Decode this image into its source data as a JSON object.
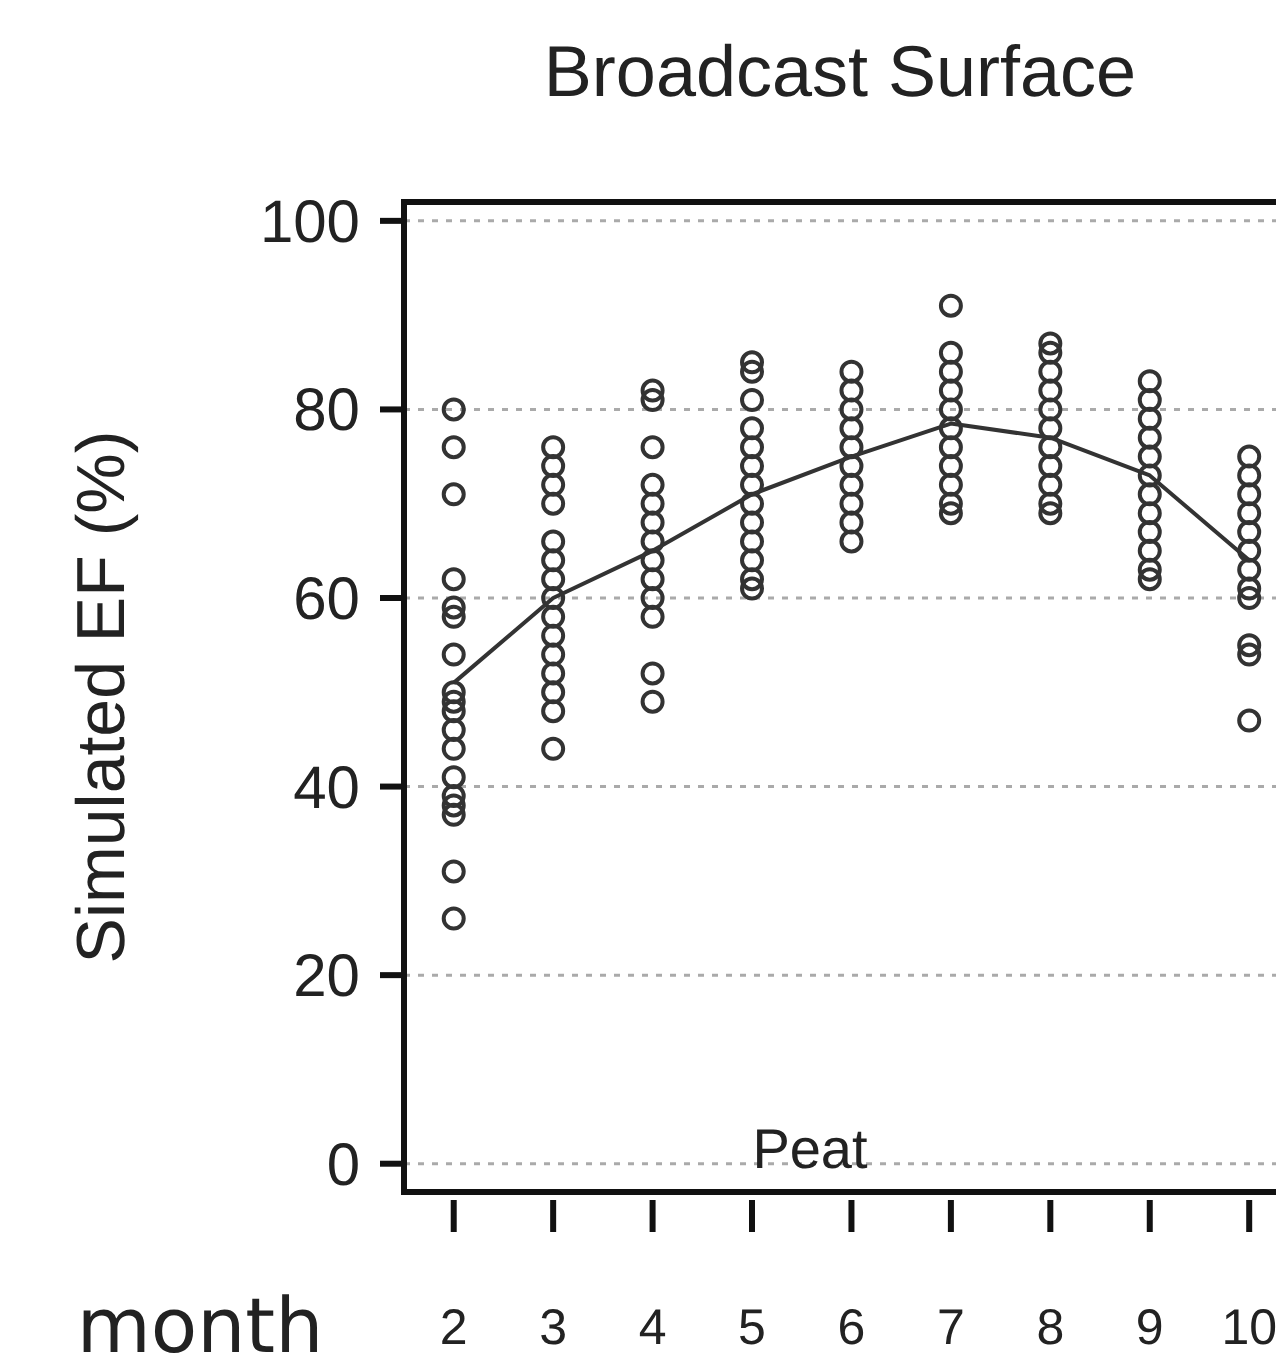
{
  "chart_data": {
    "type": "scatter",
    "title": "Broadcast Surface",
    "xlabel": "month",
    "ylabel": "Simulated  EF (%)",
    "xlim": [
      1.5,
      10.35
    ],
    "xticks": [
      2,
      3,
      4,
      5,
      6,
      7,
      8,
      9,
      10
    ],
    "ylim": [
      -3,
      102
    ],
    "yticks": [
      0,
      20,
      40,
      60,
      80,
      100
    ],
    "grid": "y",
    "marker": "circle",
    "annotations": [
      "Peat"
    ],
    "series": [
      {
        "color": "#333333",
        "x": [
          2,
          2,
          2,
          2,
          2,
          2,
          2,
          2,
          2,
          2,
          2,
          2,
          2,
          2,
          2,
          2,
          2,
          2,
          3,
          3,
          3,
          3,
          3,
          3,
          3,
          3,
          3,
          3,
          3,
          3,
          3,
          3,
          3,
          4,
          4,
          4,
          4,
          4,
          4,
          4,
          4,
          4,
          4,
          4,
          4,
          4,
          5,
          5,
          5,
          5,
          5,
          5,
          5,
          5,
          5,
          5,
          5,
          5,
          5,
          6,
          6,
          6,
          6,
          6,
          6,
          6,
          6,
          6,
          6,
          7,
          7,
          7,
          7,
          7,
          7,
          7,
          7,
          7,
          7,
          7,
          8,
          8,
          8,
          8,
          8,
          8,
          8,
          8,
          8,
          8,
          8,
          9,
          9,
          9,
          9,
          9,
          9,
          9,
          9,
          9,
          9,
          9,
          9,
          10,
          10,
          10,
          10,
          10,
          10,
          10,
          10,
          10,
          10,
          10,
          10
        ],
        "values": [
          80,
          76,
          71,
          62,
          59,
          58,
          54,
          50,
          49,
          48,
          46,
          44,
          41,
          39,
          38,
          37,
          31,
          26,
          76,
          74,
          72,
          70,
          66,
          64,
          62,
          60,
          58,
          56,
          54,
          52,
          50,
          48,
          44,
          82,
          81,
          76,
          72,
          70,
          68,
          66,
          64,
          62,
          60,
          58,
          52,
          49,
          85,
          84,
          81,
          78,
          76,
          74,
          72,
          70,
          68,
          66,
          64,
          62,
          61,
          84,
          82,
          80,
          78,
          76,
          74,
          72,
          70,
          68,
          66,
          91,
          86,
          84,
          82,
          80,
          78,
          76,
          74,
          72,
          70,
          69,
          87,
          86,
          84,
          82,
          80,
          78,
          76,
          74,
          72,
          70,
          69,
          83,
          81,
          79,
          77,
          75,
          73,
          71,
          69,
          67,
          65,
          63,
          62,
          75,
          73,
          71,
          69,
          67,
          65,
          63,
          61,
          60,
          55,
          54,
          47
        ]
      },
      {
        "type": "line",
        "color": "#333333",
        "marker": "none",
        "line_style": "solid",
        "x": [
          2,
          3,
          4,
          5,
          6,
          7,
          8,
          9,
          10
        ],
        "values": [
          51,
          60,
          65,
          71,
          75,
          78.5,
          77,
          73,
          64
        ]
      }
    ]
  }
}
